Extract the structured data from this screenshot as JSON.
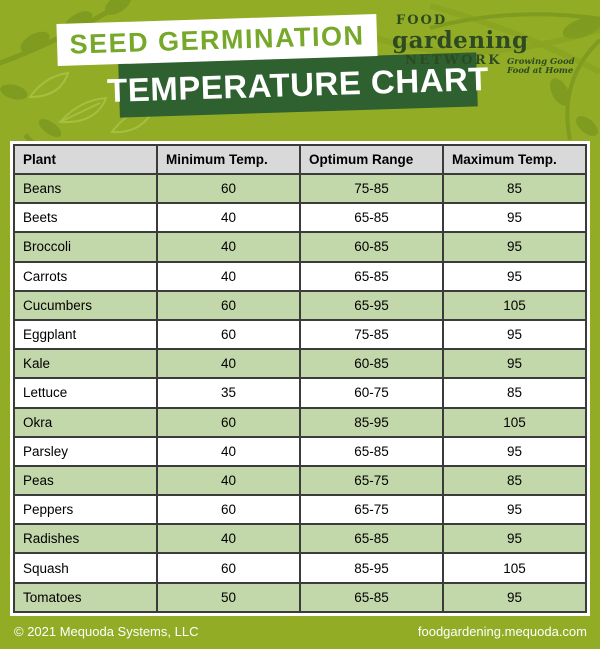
{
  "colors": {
    "background_olive": "#93ac26",
    "leaf_dark": "#7f9b20",
    "leaf_light": "#a6bf40",
    "badge_primary_bg": "#ffffff",
    "badge_primary_text": "#76a82a",
    "badge_secondary_bg": "#2e6030",
    "badge_secondary_text": "#ffffff",
    "logo_green": "#2d4a22",
    "table_header_bg": "#d9d9d9",
    "table_row_green": "#c3d8aa",
    "table_border": "#3b3b3b",
    "footer_text": "#ffffff"
  },
  "header": {
    "badge_primary": "SEED GERMINATION",
    "badge_secondary": "TEMPERATURE CHART",
    "logo": {
      "word1": "FOOD",
      "word2": "gardening",
      "word3": "NETWORK",
      "tagline": "Growing Good Food at Home"
    }
  },
  "table": {
    "columns": [
      "Plant",
      "Minimum Temp.",
      "Optimum Range",
      "Maximum Temp."
    ],
    "rows": [
      [
        "Beans",
        "60",
        "75-85",
        "85"
      ],
      [
        "Beets",
        "40",
        "65-85",
        "95"
      ],
      [
        "Broccoli",
        "40",
        "60-85",
        "95"
      ],
      [
        "Carrots",
        "40",
        "65-85",
        "95"
      ],
      [
        "Cucumbers",
        "60",
        "65-95",
        "105"
      ],
      [
        "Eggplant",
        "60",
        "75-85",
        "95"
      ],
      [
        "Kale",
        "40",
        "60-85",
        "95"
      ],
      [
        "Lettuce",
        "35",
        "60-75",
        "85"
      ],
      [
        "Okra",
        "60",
        "85-95",
        "105"
      ],
      [
        "Parsley",
        "40",
        "65-85",
        "95"
      ],
      [
        "Peas",
        "40",
        "65-75",
        "85"
      ],
      [
        "Peppers",
        "60",
        "65-75",
        "95"
      ],
      [
        "Radishes",
        "40",
        "65-85",
        "95"
      ],
      [
        "Squash",
        "60",
        "85-95",
        "105"
      ],
      [
        "Tomatoes",
        "50",
        "65-85",
        "95"
      ]
    ]
  },
  "footer": {
    "copyright": "© 2021 Mequoda Systems, LLC",
    "website": "foodgardening.mequoda.com"
  },
  "chart_data": {
    "type": "table",
    "title": "Seed Germination Temperature Chart",
    "columns": [
      "Plant",
      "Minimum Temp.",
      "Optimum Range",
      "Maximum Temp."
    ],
    "rows": [
      {
        "plant": "Beans",
        "min_temp": 60,
        "optimum_range": "75-85",
        "max_temp": 85
      },
      {
        "plant": "Beets",
        "min_temp": 40,
        "optimum_range": "65-85",
        "max_temp": 95
      },
      {
        "plant": "Broccoli",
        "min_temp": 40,
        "optimum_range": "60-85",
        "max_temp": 95
      },
      {
        "plant": "Carrots",
        "min_temp": 40,
        "optimum_range": "65-85",
        "max_temp": 95
      },
      {
        "plant": "Cucumbers",
        "min_temp": 60,
        "optimum_range": "65-95",
        "max_temp": 105
      },
      {
        "plant": "Eggplant",
        "min_temp": 60,
        "optimum_range": "75-85",
        "max_temp": 95
      },
      {
        "plant": "Kale",
        "min_temp": 40,
        "optimum_range": "60-85",
        "max_temp": 95
      },
      {
        "plant": "Lettuce",
        "min_temp": 35,
        "optimum_range": "60-75",
        "max_temp": 85
      },
      {
        "plant": "Okra",
        "min_temp": 60,
        "optimum_range": "85-95",
        "max_temp": 105
      },
      {
        "plant": "Parsley",
        "min_temp": 40,
        "optimum_range": "65-85",
        "max_temp": 95
      },
      {
        "plant": "Peas",
        "min_temp": 40,
        "optimum_range": "65-75",
        "max_temp": 85
      },
      {
        "plant": "Peppers",
        "min_temp": 60,
        "optimum_range": "65-75",
        "max_temp": 95
      },
      {
        "plant": "Radishes",
        "min_temp": 40,
        "optimum_range": "65-85",
        "max_temp": 95
      },
      {
        "plant": "Squash",
        "min_temp": 60,
        "optimum_range": "85-95",
        "max_temp": 105
      },
      {
        "plant": "Tomatoes",
        "min_temp": 50,
        "optimum_range": "65-85",
        "max_temp": 95
      }
    ]
  }
}
